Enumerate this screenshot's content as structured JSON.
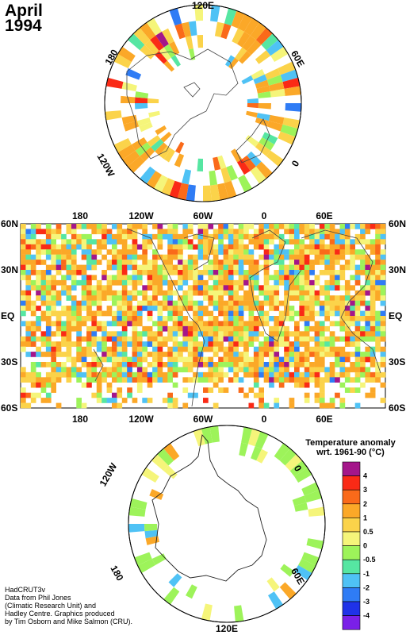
{
  "title": {
    "month": "April",
    "year": "1994"
  },
  "credit_lines": [
    "HadCRUT3v",
    "Data from Phil Jones",
    "(Climatic Research Unit) and",
    "Hadley Centre.  Graphics produced",
    "by Tim Osborn and Mike Salmon (CRU)."
  ],
  "legend": {
    "title_line1": "Temperature anomaly",
    "title_line2": "wrt. 1961-90  (°C)",
    "levels": [
      "4",
      "3",
      "2",
      "1",
      "0.5",
      "0",
      "-0.5",
      "-1",
      "-2",
      "-3",
      "-4"
    ],
    "colors": [
      "#a4168a",
      "#fa2a16",
      "#fa6a1a",
      "#fba828",
      "#fbd34a",
      "#f5f57a",
      "#9df35a",
      "#56e6a2",
      "#4fc2f5",
      "#2f7cf5",
      "#1f32e8",
      "#7a20e8"
    ]
  },
  "north_map": {
    "lon_labels": [
      "120E",
      "60E",
      "0",
      "120W",
      "180"
    ]
  },
  "main_map": {
    "lon_labels_top": [
      "180",
      "120W",
      "60W",
      "0",
      "60E"
    ],
    "lon_labels_bottom": [
      "180",
      "120W",
      "60W",
      "0",
      "60E"
    ],
    "lat_labels": [
      "60N",
      "30N",
      "EQ",
      "30S",
      "60S"
    ]
  },
  "south_map": {
    "lon_labels": [
      "120W",
      "0",
      "60E",
      "180",
      "120E"
    ]
  }
}
